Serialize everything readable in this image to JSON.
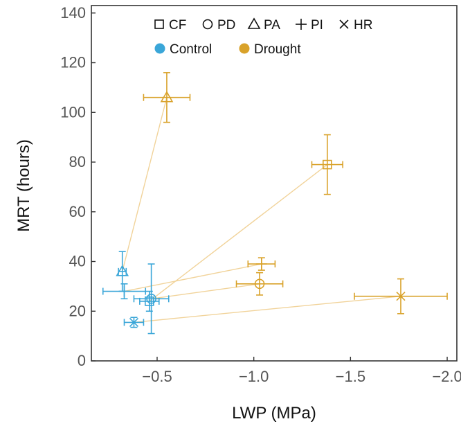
{
  "chart_data": {
    "type": "scatter",
    "xlabel": "LWP (MPa)",
    "ylabel": "MRT (hours)",
    "xlim": [
      -0.16,
      -2.05
    ],
    "ylim": [
      0,
      143
    ],
    "x_reversed": true,
    "x_ticks": [
      -0.5,
      -1.0,
      -1.5,
      -2.0
    ],
    "x_tick_labels": [
      "−0.5",
      "−1.0",
      "−1.5",
      "−2.0"
    ],
    "y_ticks": [
      0,
      20,
      40,
      60,
      80,
      100,
      120,
      140
    ],
    "y_tick_labels": [
      "0",
      "20",
      "40",
      "60",
      "80",
      "100",
      "120",
      "140"
    ],
    "legend_position": "top",
    "legend_markers": [
      {
        "marker": "square",
        "label": "CF"
      },
      {
        "marker": "circle",
        "label": "PD"
      },
      {
        "marker": "triangle",
        "label": "PA"
      },
      {
        "marker": "plus",
        "label": "PI"
      },
      {
        "marker": "x",
        "label": "HR"
      }
    ],
    "legend_treatments": [
      {
        "label": "Control",
        "color": "#3aa6d8"
      },
      {
        "label": "Drought",
        "color": "#d9a22a"
      }
    ],
    "connector_color": "#f1d39a",
    "points": [
      {
        "species": "CF",
        "marker": "square",
        "treatment": "Control",
        "x": -0.46,
        "y": 24,
        "xerr": 0.05,
        "yerr": 4
      },
      {
        "species": "CF",
        "marker": "square",
        "treatment": "Drought",
        "x": -1.38,
        "y": 79,
        "xerr": 0.08,
        "yerr": 12
      },
      {
        "species": "PD",
        "marker": "circle",
        "treatment": "Control",
        "x": -0.47,
        "y": 25,
        "xerr": 0.09,
        "yerr": 14
      },
      {
        "species": "PD",
        "marker": "circle",
        "treatment": "Drought",
        "x": -1.03,
        "y": 31,
        "xerr": 0.12,
        "yerr": 4.5
      },
      {
        "species": "PA",
        "marker": "triangle",
        "treatment": "Control",
        "x": -0.32,
        "y": 36,
        "xerr": 0.02,
        "yerr": 8
      },
      {
        "species": "PA",
        "marker": "triangle",
        "treatment": "Drought",
        "x": -0.55,
        "y": 106,
        "xerr": 0.12,
        "yerr": 10
      },
      {
        "species": "PI",
        "marker": "plus",
        "treatment": "Control",
        "x": -0.33,
        "y": 28,
        "xerr": 0.11,
        "yerr": 3
      },
      {
        "species": "PI",
        "marker": "plus",
        "treatment": "Drought",
        "x": -1.04,
        "y": 39,
        "xerr": 0.07,
        "yerr": 2.5
      },
      {
        "species": "HR",
        "marker": "x",
        "treatment": "Control",
        "x": -0.38,
        "y": 15.5,
        "xerr": 0.05,
        "yerr": 2
      },
      {
        "species": "HR",
        "marker": "x",
        "treatment": "Drought",
        "x": -1.76,
        "y": 26,
        "xerr": 0.24,
        "yerr": 7
      }
    ]
  }
}
